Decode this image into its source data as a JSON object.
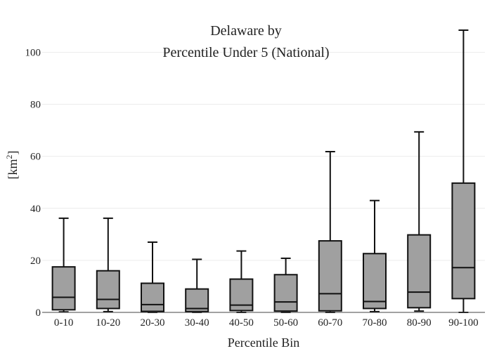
{
  "chart_data": {
    "type": "box",
    "title": [
      "Delaware by",
      "Percentile Under 5 (National)"
    ],
    "xlabel": "Percentile Bin",
    "ylabel_base": "[km",
    "ylabel_sup": "2",
    "ylabel_end": "]",
    "ylim": [
      0,
      112
    ],
    "yticks": [
      0,
      20,
      40,
      60,
      80,
      100
    ],
    "grid": true,
    "box_color": "#a0a0a0",
    "line_color": "#111111",
    "categories": [
      "0-10",
      "10-20",
      "20-30",
      "30-40",
      "40-50",
      "50-60",
      "60-70",
      "70-80",
      "80-90",
      "90-100"
    ],
    "boxes": [
      {
        "min": 0.2,
        "q1": 1.0,
        "median": 5.8,
        "q3": 17.5,
        "max": 36.2
      },
      {
        "min": 0.3,
        "q1": 1.5,
        "median": 5.0,
        "q3": 16.0,
        "max": 36.2
      },
      {
        "min": 0.0,
        "q1": 0.4,
        "median": 3.0,
        "q3": 11.2,
        "max": 27.0
      },
      {
        "min": 0.0,
        "q1": 0.3,
        "median": 1.5,
        "q3": 9.0,
        "max": 20.4
      },
      {
        "min": 0.0,
        "q1": 0.7,
        "median": 2.8,
        "q3": 12.8,
        "max": 23.6
      },
      {
        "min": 0.0,
        "q1": 0.5,
        "median": 4.0,
        "q3": 14.5,
        "max": 20.8
      },
      {
        "min": 0.0,
        "q1": 0.6,
        "median": 7.2,
        "q3": 27.5,
        "max": 61.8
      },
      {
        "min": 0.3,
        "q1": 1.5,
        "median": 4.2,
        "q3": 22.6,
        "max": 43.0
      },
      {
        "min": 0.5,
        "q1": 1.8,
        "median": 7.8,
        "q3": 29.8,
        "max": 69.4
      },
      {
        "min": 0.0,
        "q1": 5.3,
        "median": 17.2,
        "q3": 49.7,
        "max": 108.5
      }
    ]
  }
}
